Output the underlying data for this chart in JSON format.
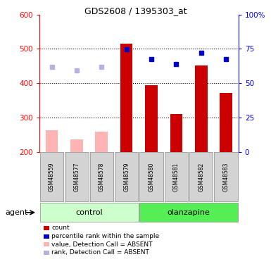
{
  "title": "GDS2608 / 1395303_at",
  "samples": [
    "GSM48559",
    "GSM48577",
    "GSM48578",
    "GSM48579",
    "GSM48580",
    "GSM48581",
    "GSM48582",
    "GSM48583"
  ],
  "bar_values": [
    null,
    null,
    null,
    515,
    395,
    310,
    452,
    372
  ],
  "bar_absent_values": [
    263,
    237,
    258,
    null,
    null,
    null,
    null,
    null
  ],
  "rank_values": [
    null,
    null,
    null,
    499,
    469,
    456,
    489,
    469
  ],
  "rank_absent_values": [
    447,
    437,
    447,
    null,
    null,
    null,
    null,
    null
  ],
  "ylim_left": [
    200,
    600
  ],
  "ylim_right": [
    0,
    100
  ],
  "yticks_left": [
    200,
    300,
    400,
    500,
    600
  ],
  "yticks_right": [
    0,
    25,
    50,
    75,
    100
  ],
  "bar_color": "#cc0000",
  "bar_absent_color": "#ffb3b3",
  "rank_color": "#0000cc",
  "rank_absent_color": "#b3b3dd",
  "control_bg_light": "#ccffcc",
  "olanzapine_bg_bright": "#55ee55",
  "sample_bg": "#d3d3d3",
  "legend_items": [
    {
      "label": "count",
      "color": "#cc0000"
    },
    {
      "label": "percentile rank within the sample",
      "color": "#0000cc"
    },
    {
      "label": "value, Detection Call = ABSENT",
      "color": "#ffb3b3"
    },
    {
      "label": "rank, Detection Call = ABSENT",
      "color": "#b3b3dd"
    }
  ]
}
